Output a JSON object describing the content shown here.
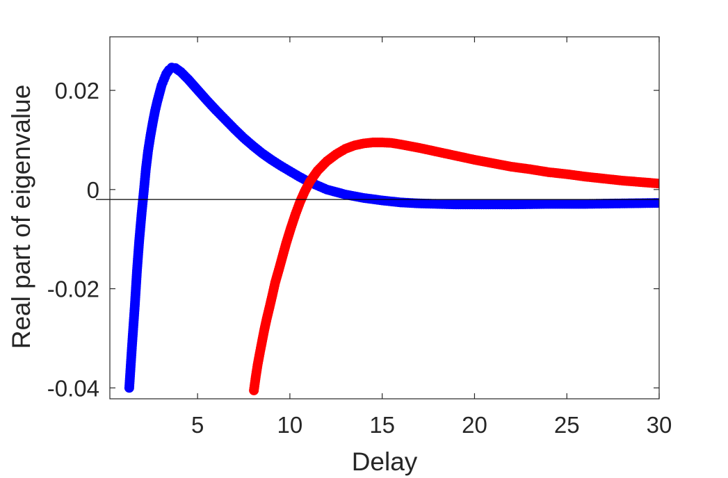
{
  "chart_data": {
    "type": "scatter",
    "title": "",
    "xlabel": "Delay",
    "ylabel": "Real part of eigenvalue",
    "xlim": [
      0.25,
      30
    ],
    "ylim": [
      -0.0422,
      0.0308
    ],
    "xticks": [
      5,
      10,
      15,
      20,
      25,
      30
    ],
    "xtick_labels": [
      "5",
      "10",
      "15",
      "20",
      "25",
      "30"
    ],
    "yticks": [
      -0.04,
      -0.02,
      0,
      0.02
    ],
    "ytick_labels": [
      "-0.04",
      "-0.02",
      "0",
      "0.02"
    ],
    "reference_line_y": -0.002,
    "grid": false,
    "series": [
      {
        "color": "#0000ff",
        "marker": "filled-circle",
        "connected": true,
        "points": [
          [
            1.3,
            -0.04
          ],
          [
            1.45,
            -0.0315
          ],
          [
            1.6,
            -0.0235
          ],
          [
            1.72,
            -0.0163
          ],
          [
            1.84,
            -0.0103
          ],
          [
            1.97,
            -0.0048
          ],
          [
            2.1,
            0.0001
          ],
          [
            2.2,
            0.0041
          ],
          [
            2.32,
            0.0078
          ],
          [
            2.45,
            0.0109
          ],
          [
            2.58,
            0.0136
          ],
          [
            2.7,
            0.0159
          ],
          [
            2.82,
            0.0178
          ],
          [
            2.95,
            0.0196
          ],
          [
            3.05,
            0.021
          ],
          [
            3.18,
            0.0222
          ],
          [
            3.3,
            0.0233
          ],
          [
            3.45,
            0.0241
          ],
          [
            3.6,
            0.0246
          ],
          [
            3.8,
            0.0245
          ],
          [
            4.1,
            0.0237
          ],
          [
            4.5,
            0.0222
          ],
          [
            5.0,
            0.0201
          ],
          [
            5.5,
            0.018
          ],
          [
            6.0,
            0.016
          ],
          [
            6.5,
            0.0141
          ],
          [
            7.0,
            0.0122
          ],
          [
            7.5,
            0.0104
          ],
          [
            8.0,
            0.0088
          ],
          [
            8.5,
            0.0073
          ],
          [
            9.0,
            0.006
          ],
          [
            9.5,
            0.0048
          ],
          [
            10.0,
            0.0037
          ],
          [
            10.5,
            0.0026
          ],
          [
            11.0,
            0.0016
          ],
          [
            11.5,
            0.0008
          ],
          [
            12.0,
            0.0
          ],
          [
            12.5,
            -0.0005
          ],
          [
            13.0,
            -0.001
          ],
          [
            14.0,
            -0.0017
          ],
          [
            15.0,
            -0.0022
          ],
          [
            16.0,
            -0.0026
          ],
          [
            17.0,
            -0.0028
          ],
          [
            18.0,
            -0.0029
          ],
          [
            19.0,
            -0.003
          ],
          [
            20.0,
            -0.003
          ],
          [
            22.0,
            -0.003
          ],
          [
            24.0,
            -0.0029
          ],
          [
            26.0,
            -0.0029
          ],
          [
            28.0,
            -0.0028
          ],
          [
            30.0,
            -0.0027
          ]
        ]
      },
      {
        "color": "#ff0000",
        "marker": "filled-circle",
        "connected": true,
        "points": [
          [
            8.05,
            -0.0405
          ],
          [
            8.15,
            -0.0378
          ],
          [
            8.25,
            -0.0354
          ],
          [
            8.37,
            -0.033
          ],
          [
            8.5,
            -0.0305
          ],
          [
            8.62,
            -0.0282
          ],
          [
            8.75,
            -0.026
          ],
          [
            8.9,
            -0.0237
          ],
          [
            9.05,
            -0.0213
          ],
          [
            9.2,
            -0.0188
          ],
          [
            9.4,
            -0.0162
          ],
          [
            9.6,
            -0.0135
          ],
          [
            9.8,
            -0.0108
          ],
          [
            10.05,
            -0.0078
          ],
          [
            10.3,
            -0.005
          ],
          [
            10.55,
            -0.0025
          ],
          [
            10.8,
            -0.0004
          ],
          [
            11.1,
            0.0017
          ],
          [
            11.5,
            0.0038
          ],
          [
            12.0,
            0.0057
          ],
          [
            12.5,
            0.0071
          ],
          [
            13.0,
            0.0082
          ],
          [
            13.5,
            0.0089
          ],
          [
            14.0,
            0.0093
          ],
          [
            14.5,
            0.0095
          ],
          [
            15.0,
            0.0095
          ],
          [
            15.5,
            0.0094
          ],
          [
            16.0,
            0.0091
          ],
          [
            17.0,
            0.0084
          ],
          [
            18.0,
            0.0076
          ],
          [
            19.0,
            0.0068
          ],
          [
            20.0,
            0.006
          ],
          [
            21.0,
            0.0053
          ],
          [
            22.0,
            0.0046
          ],
          [
            23.0,
            0.0041
          ],
          [
            24.0,
            0.0035
          ],
          [
            25.0,
            0.0031
          ],
          [
            26.0,
            0.0026
          ],
          [
            27.0,
            0.0022
          ],
          [
            28.0,
            0.0018
          ],
          [
            29.0,
            0.0015
          ],
          [
            30.0,
            0.0012
          ]
        ]
      }
    ]
  }
}
